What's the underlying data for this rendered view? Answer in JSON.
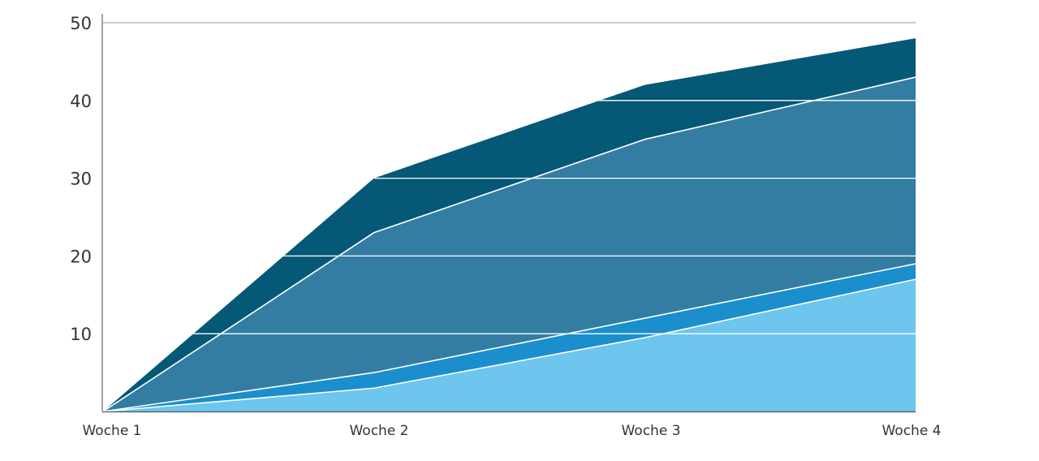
{
  "chart_data": {
    "type": "area",
    "stacked": false,
    "categories": [
      "Woche 1",
      "Woche 2",
      "Woche 3",
      "Woche 4"
    ],
    "series": [
      {
        "values": [
          0,
          30,
          42,
          48
        ],
        "color": "#065877"
      },
      {
        "values": [
          0,
          23,
          35,
          43
        ],
        "color": "#337da3"
      },
      {
        "values": [
          0,
          5,
          12,
          19
        ],
        "color": "#1b8fcd"
      },
      {
        "values": [
          0,
          3,
          9.5,
          17
        ],
        "color": "#6ec5ed"
      }
    ],
    "y_ticks": [
      "10",
      "20",
      "30",
      "40",
      "50"
    ],
    "ylim": [
      0,
      50
    ],
    "grid": true,
    "title": "",
    "xlabel": "",
    "ylabel": ""
  }
}
